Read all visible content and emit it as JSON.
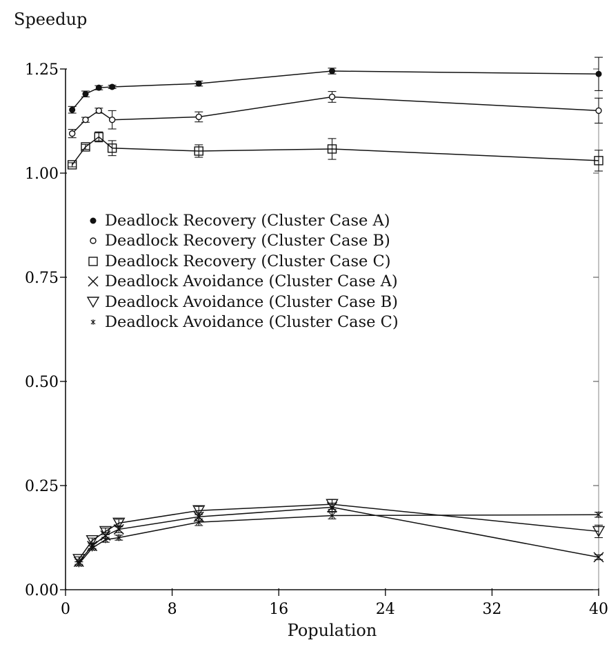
{
  "chart_data": {
    "type": "line",
    "ylabel": "Speedup",
    "xlabel": "Population",
    "x_ticks": [
      0,
      8,
      16,
      24,
      32,
      40
    ],
    "x_tick_labels": [
      "0",
      "8",
      "16",
      "24",
      "32",
      "40"
    ],
    "y_ticks": [
      0,
      0.25,
      0.5,
      0.75,
      1.0,
      1.25
    ],
    "y_tick_labels": [
      "0.00",
      "0.25",
      "0.50",
      "0.75",
      "1.00",
      "1.25"
    ],
    "xlim": [
      0,
      40
    ],
    "ylim": [
      0,
      1.25
    ],
    "grid": false,
    "legend_position": "upper-left",
    "series": [
      {
        "name": "Deadlock Recovery (Cluster Case A)",
        "marker": "filled-circle",
        "x": [
          0.5,
          1.5,
          2.5,
          3.5,
          10,
          20,
          40
        ],
        "y": [
          1.152,
          1.19,
          1.205,
          1.207,
          1.215,
          1.245,
          1.238
        ],
        "err": [
          0.008,
          0.007,
          0.005,
          0.004,
          0.006,
          0.007,
          0.04
        ]
      },
      {
        "name": "Deadlock Recovery (Cluster Case B)",
        "marker": "open-circle",
        "x": [
          0.5,
          1.5,
          2.5,
          3.5,
          10,
          20,
          40
        ],
        "y": [
          1.095,
          1.128,
          1.15,
          1.128,
          1.135,
          1.183,
          1.15
        ],
        "err": [
          0.01,
          0.006,
          0.006,
          0.022,
          0.012,
          0.013,
          0.03
        ]
      },
      {
        "name": "Deadlock Recovery (Cluster Case C)",
        "marker": "open-square",
        "x": [
          0.5,
          1.5,
          2.5,
          3.5,
          10,
          20,
          40
        ],
        "y": [
          1.02,
          1.063,
          1.087,
          1.06,
          1.053,
          1.058,
          1.03
        ],
        "err": [
          0.005,
          0.006,
          0.012,
          0.018,
          0.015,
          0.025,
          0.025
        ]
      },
      {
        "name": "Deadlock Avoidance (Cluster Case A)",
        "marker": "x",
        "x": [
          1,
          2,
          3,
          4,
          10,
          20,
          40
        ],
        "y": [
          0.067,
          0.105,
          0.13,
          0.145,
          0.175,
          0.198,
          0.078
        ],
        "err": [
          0.006,
          0.006,
          0.007,
          0.008,
          0.01,
          0.01,
          0.006
        ]
      },
      {
        "name": "Deadlock Avoidance (Cluster Case B)",
        "marker": "triangle-down",
        "x": [
          1,
          2,
          3,
          4,
          10,
          20,
          40
        ],
        "y": [
          0.073,
          0.118,
          0.14,
          0.16,
          0.19,
          0.205,
          0.14
        ],
        "err": [
          0.006,
          0.006,
          0.008,
          0.009,
          0.01,
          0.012,
          0.015
        ]
      },
      {
        "name": "Deadlock Avoidance (Cluster Case C)",
        "marker": "asterisk",
        "x": [
          1,
          2,
          3,
          4,
          10,
          20,
          40
        ],
        "y": [
          0.062,
          0.1,
          0.12,
          0.125,
          0.162,
          0.178,
          0.18
        ],
        "err": [
          0.005,
          0.005,
          0.006,
          0.006,
          0.008,
          0.008,
          0.006
        ]
      }
    ]
  }
}
